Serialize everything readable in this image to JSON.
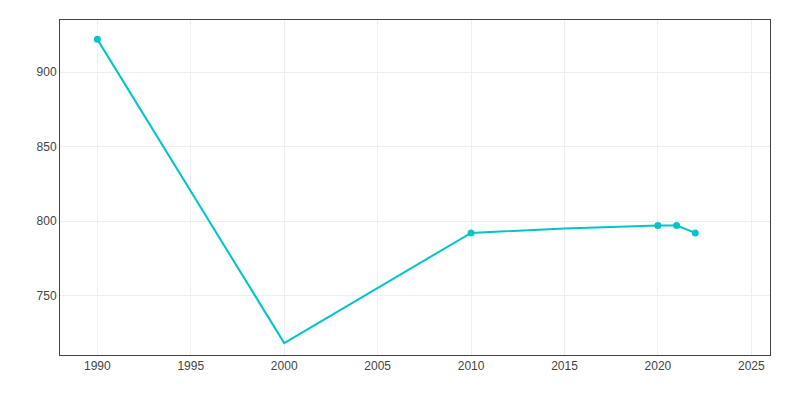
{
  "chart_data": {
    "type": "line",
    "x": [
      1990,
      2000,
      2010,
      2015,
      2020,
      2021,
      2022
    ],
    "series": [
      {
        "type": "line",
        "line_style": "solid",
        "color": "#00C5C8",
        "values": [
          922,
          718,
          792,
          795,
          797,
          797,
          792
        ]
      },
      {
        "type": "scatter",
        "marker": "circle",
        "color": "#00C5C8",
        "values": [
          922,
          null,
          792,
          null,
          797,
          797,
          792
        ]
      }
    ],
    "xlim": [
      1988,
      2026
    ],
    "xticks": [
      1990,
      1995,
      2000,
      2005,
      2010,
      2015,
      2020,
      2025
    ],
    "ylim": [
      710,
      935
    ],
    "yticks": [
      750,
      800,
      850,
      900
    ],
    "grid": true
  }
}
